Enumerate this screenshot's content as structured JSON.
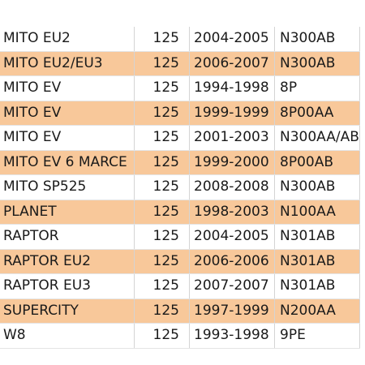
{
  "table": {
    "rows": [
      {
        "model": "MITO EU2",
        "cc": "125",
        "years": "2004-2005",
        "code": "N300AB",
        "highlighted": false
      },
      {
        "model": "MITO EU2/EU3",
        "cc": "125",
        "years": "2006-2007",
        "code": "N300AB",
        "highlighted": true
      },
      {
        "model": "MITO EV",
        "cc": "125",
        "years": "1994-1998",
        "code": "8P",
        "highlighted": false
      },
      {
        "model": "MITO EV",
        "cc": "125",
        "years": "1999-1999",
        "code": "8P00AA",
        "highlighted": true
      },
      {
        "model": "MITO EV",
        "cc": "125",
        "years": "2001-2003",
        "code": "N300AA/AB",
        "highlighted": false
      },
      {
        "model": "MITO EV 6 MARCE",
        "cc": "125",
        "years": "1999-2000",
        "code": "8P00AB",
        "highlighted": true
      },
      {
        "model": "MITO SP525",
        "cc": "125",
        "years": "2008-2008",
        "code": "N300AB",
        "highlighted": false
      },
      {
        "model": "PLANET",
        "cc": "125",
        "years": "1998-2003",
        "code": "N100AA",
        "highlighted": true
      },
      {
        "model": "RAPTOR",
        "cc": "125",
        "years": "2004-2005",
        "code": "N301AB",
        "highlighted": false
      },
      {
        "model": "RAPTOR EU2",
        "cc": "125",
        "years": "2006-2006",
        "code": "N301AB",
        "highlighted": true
      },
      {
        "model": "RAPTOR EU3",
        "cc": "125",
        "years": "2007-2007",
        "code": "N301AB",
        "highlighted": false
      },
      {
        "model": "SUPERCITY",
        "cc": "125",
        "years": "1997-1999",
        "code": "N200AA",
        "highlighted": true
      },
      {
        "model": "W8",
        "cc": "125",
        "years": "1993-1998",
        "code": "9PE",
        "highlighted": false
      }
    ]
  },
  "colors": {
    "row_highlight": "#f8c89a",
    "row_plain": "#ffffff"
  }
}
